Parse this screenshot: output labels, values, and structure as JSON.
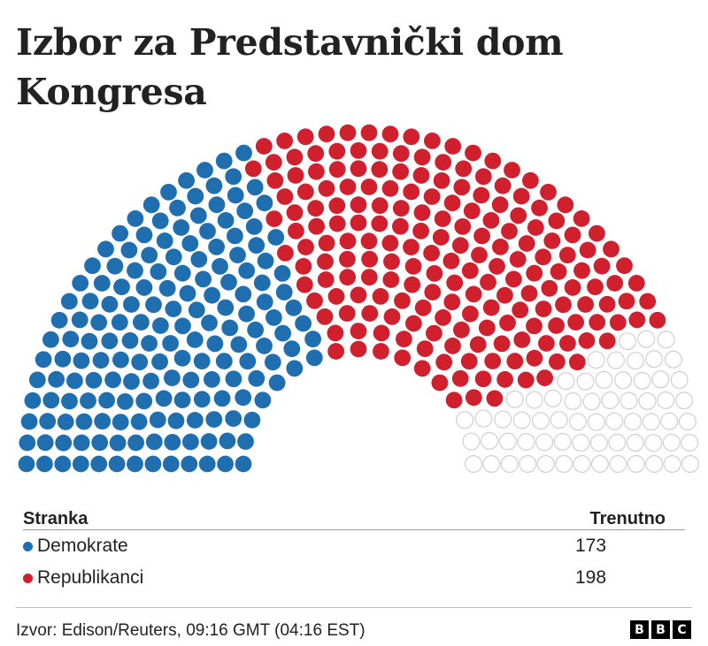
{
  "title": "Izbor za Predstavnički dom Kongresa",
  "chart_data": {
    "type": "parliament",
    "total_seats": 435,
    "series": [
      {
        "name": "Demokrate",
        "value": 173,
        "color": "#1f6fb0"
      },
      {
        "name": "Republikanci",
        "value": 198,
        "color": "#d0202e"
      }
    ],
    "undecided_color": "#ffffff"
  },
  "table": {
    "header_party": "Stranka",
    "header_current": "Trenutno",
    "rows": [
      {
        "party": "Demokrate",
        "value": "173",
        "color": "#1f6fb0"
      },
      {
        "party": "Republikanci",
        "value": "198",
        "color": "#d0202e"
      }
    ]
  },
  "footer": {
    "source": "Izvor: Edison/Reuters, 09:16 GMT (04:16 EST)",
    "logo": [
      "B",
      "B",
      "C"
    ]
  }
}
